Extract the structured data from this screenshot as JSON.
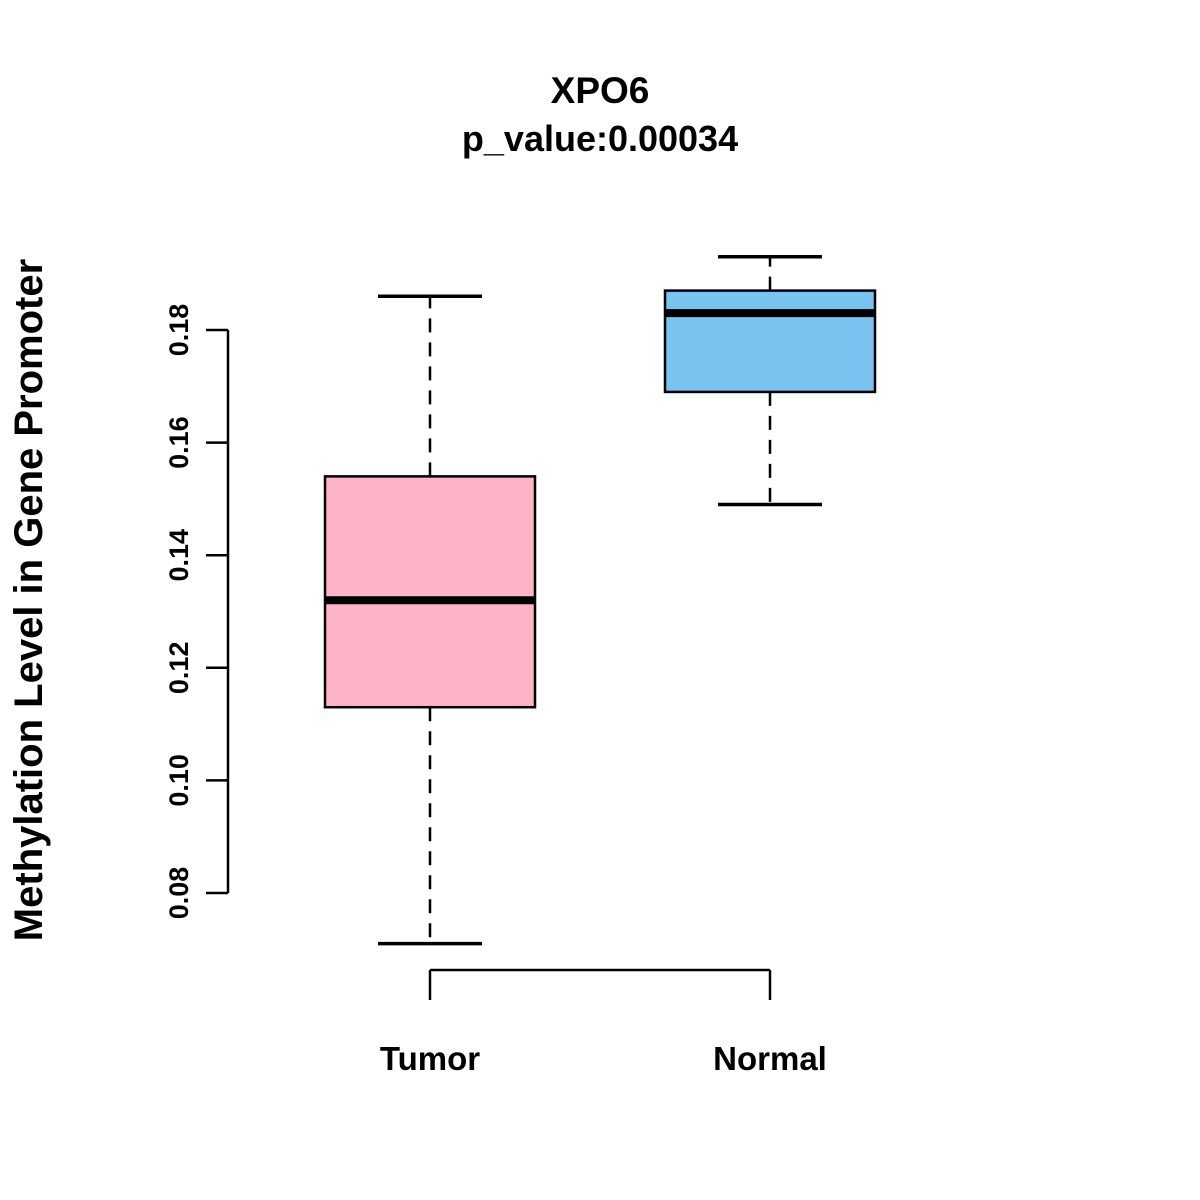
{
  "chart_data": {
    "type": "boxplot",
    "title": "XPO6",
    "subtitle": "p_value:0.00034",
    "ylabel": "Methylation Level in Gene Promoter",
    "xlabel": "",
    "categories": [
      "Tumor",
      "Normal"
    ],
    "series": [
      {
        "name": "Tumor",
        "min": 0.071,
        "q1": 0.113,
        "median": 0.132,
        "q3": 0.154,
        "max": 0.186,
        "color": "#FFB3C6"
      },
      {
        "name": "Normal",
        "min": 0.149,
        "q1": 0.169,
        "median": 0.183,
        "q3": 0.187,
        "max": 0.193,
        "color": "#79C3F1"
      }
    ],
    "yticks": [
      0.08,
      0.1,
      0.12,
      0.14,
      0.16,
      0.18
    ],
    "ylim": [
      0.07,
      0.195
    ],
    "grid": false,
    "legend": "none",
    "box_border_color": "#000000",
    "median_color": "#000000"
  }
}
